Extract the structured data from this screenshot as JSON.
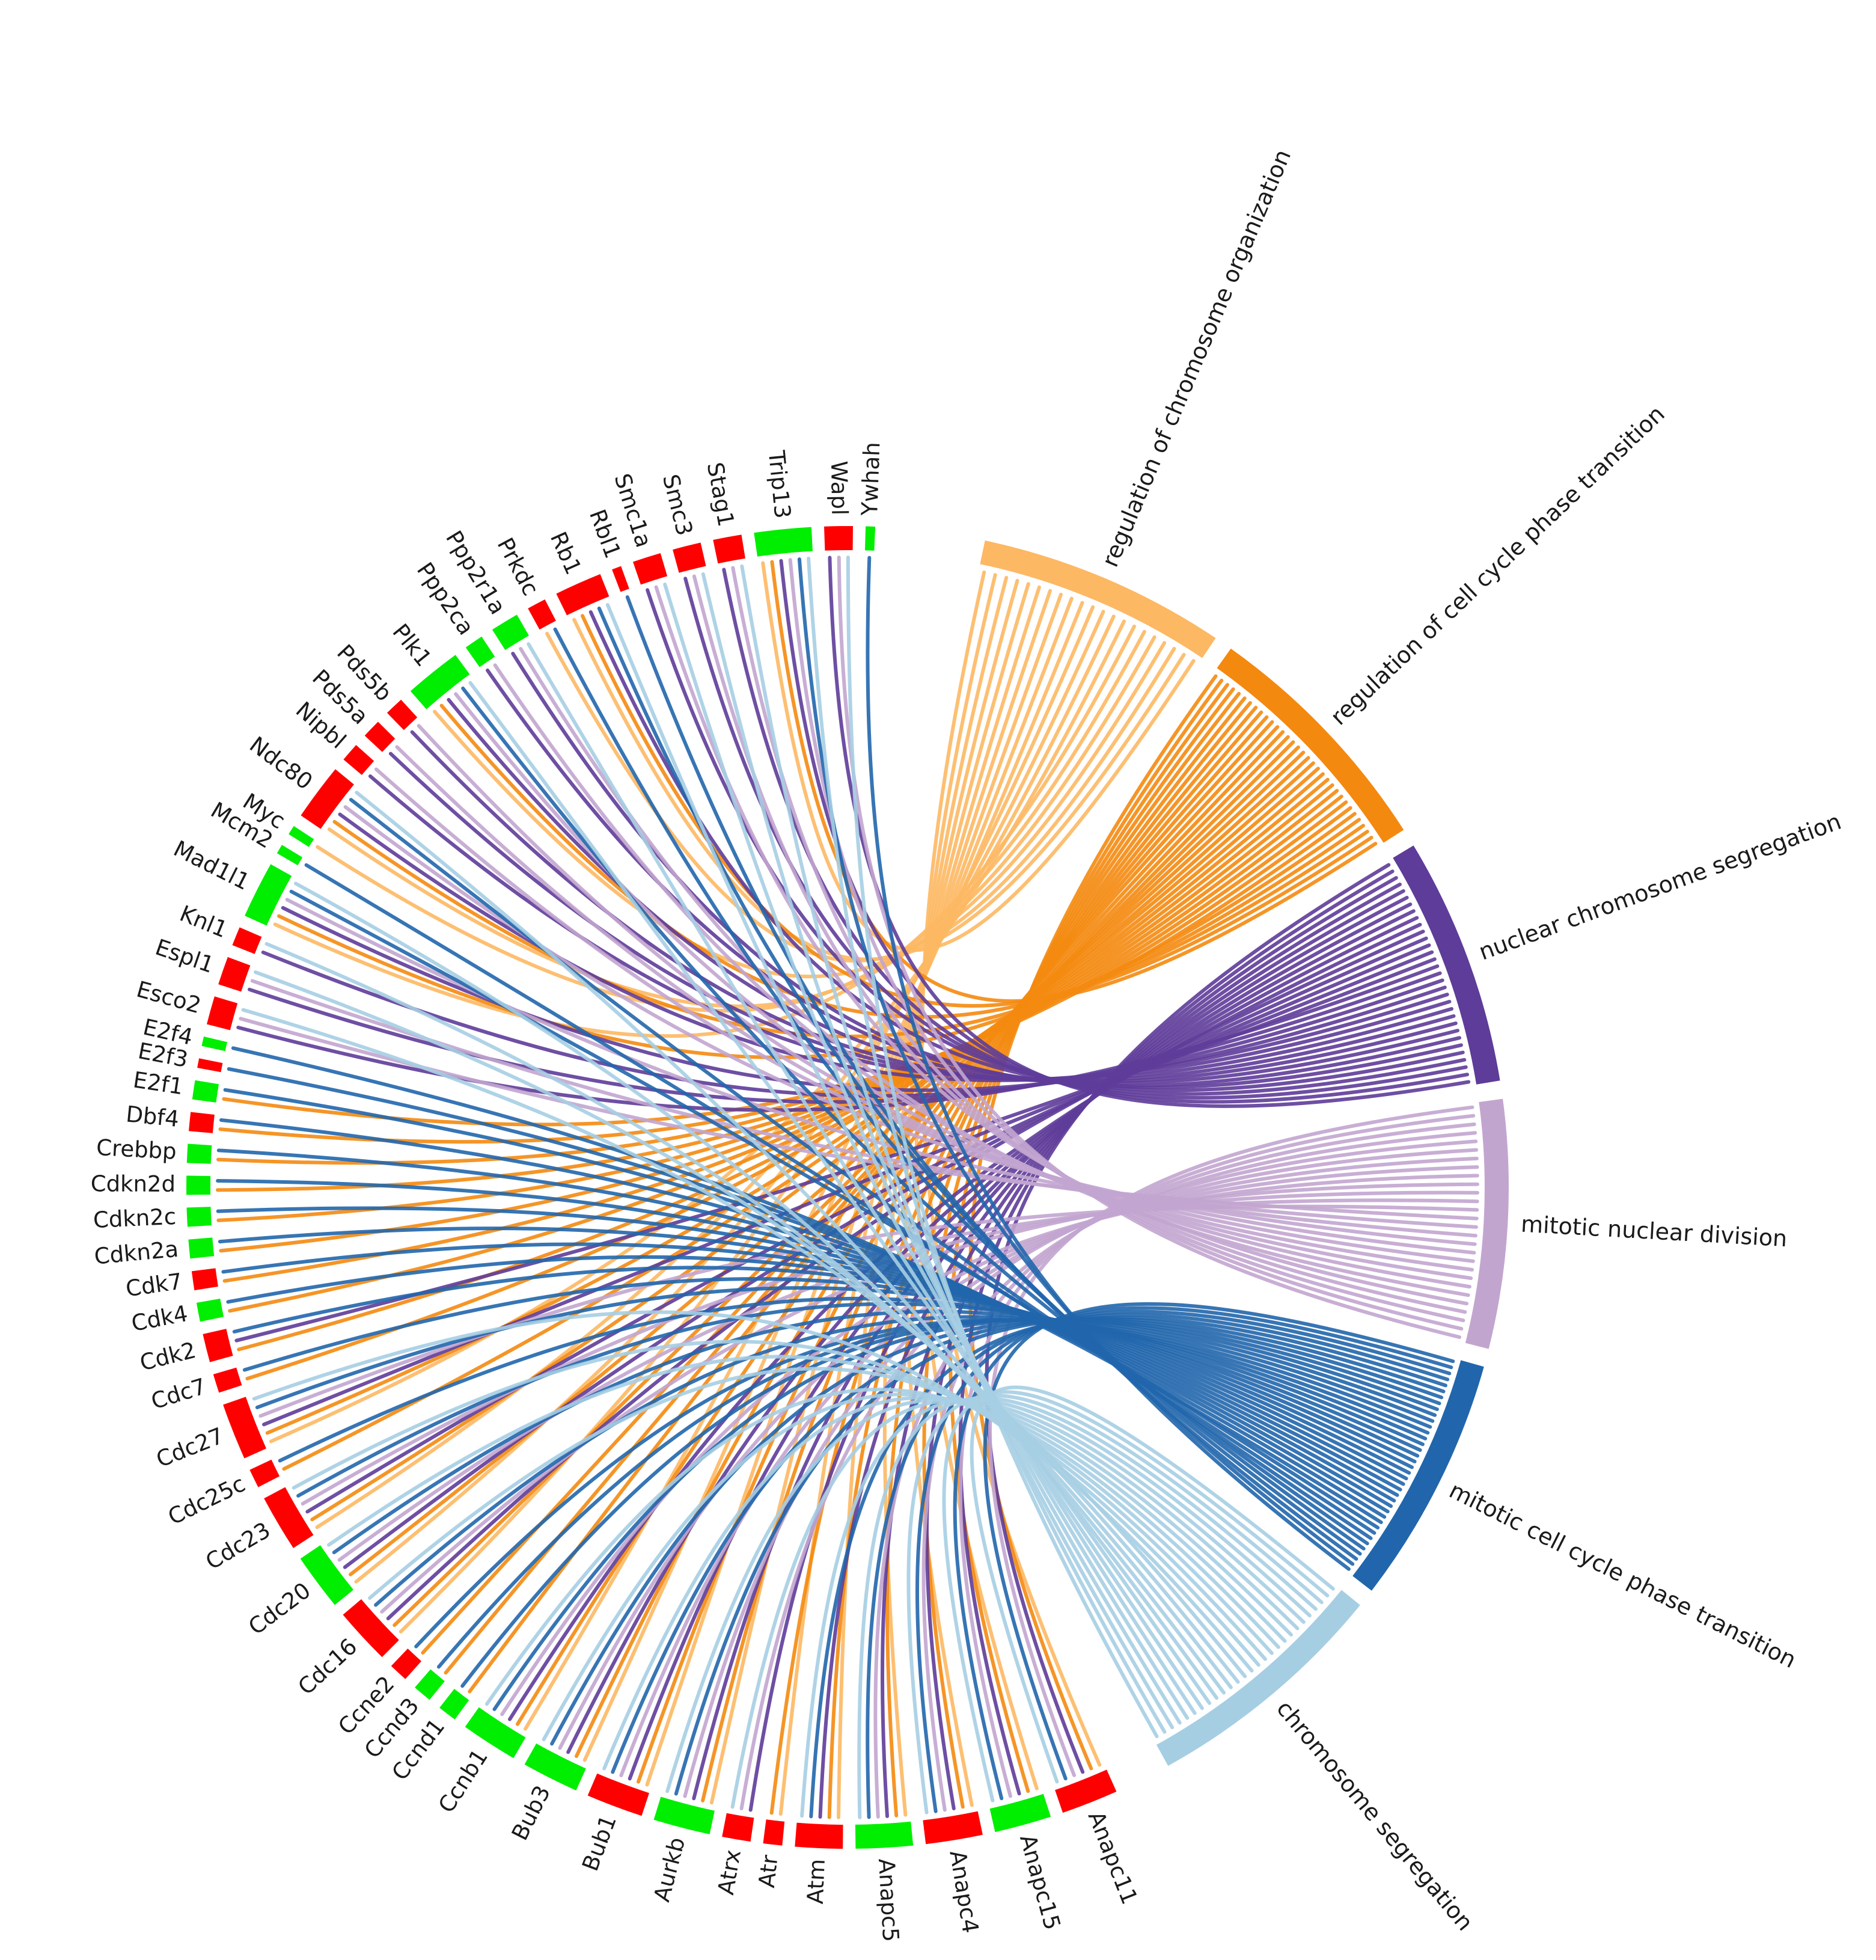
{
  "colors": {
    "up": "#ff0000",
    "down": "#00ee00"
  },
  "terms": [
    {
      "label": "regulation of chromosome organization",
      "color": "#fdb863"
    },
    {
      "label": "regulation of cell cycle phase transition",
      "color": "#f4890f"
    },
    {
      "label": "nuclear chromosome segregation",
      "color": "#5e3c99"
    },
    {
      "label": "mitotic nuclear division",
      "color": "#c2a5cf"
    },
    {
      "label": "mitotic cell cycle phase transition",
      "color": "#2166ac"
    },
    {
      "label": "chromosome segregation",
      "color": "#a6cee3"
    }
  ],
  "genes": [
    {
      "label": "Anapc11",
      "status": "up",
      "terms": [
        0,
        1,
        2,
        3,
        4,
        5
      ]
    },
    {
      "label": "Anapc15",
      "status": "down",
      "terms": [
        0,
        1,
        2,
        3,
        4,
        5
      ]
    },
    {
      "label": "Anapc4",
      "status": "up",
      "terms": [
        0,
        1,
        2,
        3,
        4,
        5
      ]
    },
    {
      "label": "Anapc5",
      "status": "down",
      "terms": [
        0,
        1,
        2,
        3,
        4,
        5
      ]
    },
    {
      "label": "Atm",
      "status": "up",
      "terms": [
        0,
        1,
        2,
        4,
        5
      ]
    },
    {
      "label": "Atr",
      "status": "up",
      "terms": [
        0,
        1
      ]
    },
    {
      "label": "Atrx",
      "status": "up",
      "terms": [
        2,
        3,
        5
      ]
    },
    {
      "label": "Aurkb",
      "status": "down",
      "terms": [
        0,
        1,
        2,
        3,
        4,
        5
      ]
    },
    {
      "label": "Bub1",
      "status": "up",
      "terms": [
        0,
        1,
        2,
        3,
        4,
        5
      ]
    },
    {
      "label": "Bub3",
      "status": "down",
      "terms": [
        0,
        1,
        2,
        3,
        4,
        5
      ]
    },
    {
      "label": "Ccnb1",
      "status": "down",
      "terms": [
        0,
        1,
        2,
        3,
        4,
        5
      ]
    },
    {
      "label": "Ccnd1",
      "status": "down",
      "terms": [
        1,
        4
      ]
    },
    {
      "label": "Ccnd3",
      "status": "down",
      "terms": [
        1,
        4
      ]
    },
    {
      "label": "Ccne2",
      "status": "up",
      "terms": [
        1,
        4
      ]
    },
    {
      "label": "Cdc16",
      "status": "up",
      "terms": [
        0,
        1,
        2,
        3,
        4,
        5
      ]
    },
    {
      "label": "Cdc20",
      "status": "down",
      "terms": [
        0,
        1,
        2,
        3,
        4,
        5
      ]
    },
    {
      "label": "Cdc23",
      "status": "up",
      "terms": [
        0,
        1,
        2,
        3,
        4,
        5
      ]
    },
    {
      "label": "Cdc25c",
      "status": "up",
      "terms": [
        1,
        4
      ]
    },
    {
      "label": "Cdc27",
      "status": "up",
      "terms": [
        0,
        1,
        2,
        3,
        4,
        5
      ]
    },
    {
      "label": "Cdc7",
      "status": "up",
      "terms": [
        1,
        4
      ]
    },
    {
      "label": "Cdk2",
      "status": "up",
      "terms": [
        1,
        2,
        4
      ]
    },
    {
      "label": "Cdk4",
      "status": "down",
      "terms": [
        1,
        4
      ]
    },
    {
      "label": "Cdk7",
      "status": "up",
      "terms": [
        1,
        4
      ]
    },
    {
      "label": "Cdkn2a",
      "status": "down",
      "terms": [
        1,
        4
      ]
    },
    {
      "label": "Cdkn2c",
      "status": "down",
      "terms": [
        1,
        4
      ]
    },
    {
      "label": "Cdkn2d",
      "status": "down",
      "terms": [
        1,
        4
      ]
    },
    {
      "label": "Crebbp",
      "status": "down",
      "terms": [
        1,
        4
      ]
    },
    {
      "label": "Dbf4",
      "status": "up",
      "terms": [
        1,
        4
      ]
    },
    {
      "label": "E2f1",
      "status": "down",
      "terms": [
        1,
        4
      ]
    },
    {
      "label": "E2f3",
      "status": "up",
      "terms": [
        4
      ]
    },
    {
      "label": "E2f4",
      "status": "down",
      "terms": [
        4
      ]
    },
    {
      "label": "Esco2",
      "status": "up",
      "terms": [
        2,
        3,
        5
      ]
    },
    {
      "label": "Espl1",
      "status": "up",
      "terms": [
        2,
        3,
        5
      ]
    },
    {
      "label": "Knl1",
      "status": "up",
      "terms": [
        2,
        5
      ]
    },
    {
      "label": "Mad1l1",
      "status": "down",
      "terms": [
        0,
        1,
        2,
        3,
        4,
        5
      ]
    },
    {
      "label": "Mcm2",
      "status": "down",
      "terms": [
        4
      ]
    },
    {
      "label": "Myc",
      "status": "down",
      "terms": [
        0
      ]
    },
    {
      "label": "Ndc80",
      "status": "up",
      "terms": [
        0,
        1,
        2,
        3,
        4,
        5
      ]
    },
    {
      "label": "Nipbl",
      "status": "up",
      "terms": [
        2,
        3
      ]
    },
    {
      "label": "Pds5a",
      "status": "up",
      "terms": [
        2,
        3
      ]
    },
    {
      "label": "Pds5b",
      "status": "up",
      "terms": [
        2,
        3
      ]
    },
    {
      "label": "Plk1",
      "status": "down",
      "terms": [
        0,
        1,
        2,
        3,
        4,
        5
      ]
    },
    {
      "label": "Ppp2ca",
      "status": "down",
      "terms": [
        2,
        3
      ]
    },
    {
      "label": "Ppp2r1a",
      "status": "down",
      "terms": [
        2,
        3,
        5
      ]
    },
    {
      "label": "Prkdc",
      "status": "up",
      "terms": [
        0,
        4
      ]
    },
    {
      "label": "Rb1",
      "status": "up",
      "terms": [
        0,
        1,
        2,
        4,
        5
      ]
    },
    {
      "label": "Rbl1",
      "status": "up",
      "terms": [
        4
      ]
    },
    {
      "label": "Smc1a",
      "status": "up",
      "terms": [
        2,
        3,
        5
      ]
    },
    {
      "label": "Smc3",
      "status": "up",
      "terms": [
        2,
        3,
        5
      ]
    },
    {
      "label": "Stag1",
      "status": "up",
      "terms": [
        2,
        3,
        5
      ]
    },
    {
      "label": "Trip13",
      "status": "down",
      "terms": [
        0,
        1,
        2,
        3,
        4,
        5
      ]
    },
    {
      "label": "Wapl",
      "status": "up",
      "terms": [
        2,
        3,
        5
      ]
    },
    {
      "label": "Ywhah",
      "status": "down",
      "terms": [
        4
      ]
    }
  ]
}
